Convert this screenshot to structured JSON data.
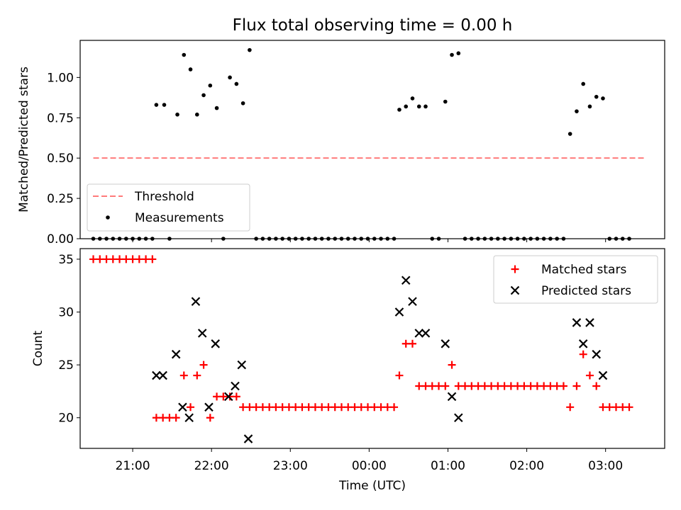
{
  "figure": {
    "title": "Flux total observing time = 0.00 h",
    "xlabel": "Time (UTC)"
  },
  "colors": {
    "threshold": "#ff7a7a",
    "measurements": "#000000",
    "matched": "#ff0000",
    "predicted": "#000000",
    "axes": "#000000"
  },
  "chart_data": [
    {
      "type": "scatter",
      "title": "Flux total observing time = 0.00 h",
      "ylabel": "Matched/Predicted stars",
      "xlabel": "",
      "x_unit": "time UTC",
      "xlim": [
        "20:20",
        "03:45"
      ],
      "ylim": [
        0.0,
        1.23
      ],
      "yticks": [
        0.0,
        0.25,
        0.5,
        0.75,
        1.0
      ],
      "ytick_labels": [
        "0.00",
        "0.25",
        "0.50",
        "0.75",
        "1.00"
      ],
      "legend": {
        "placement": "lower-left",
        "entries": [
          "Threshold",
          "Measurements"
        ]
      },
      "threshold": {
        "name": "Threshold",
        "value": 0.5,
        "x_range": [
          "20:30",
          "03:30"
        ],
        "style": "dashed"
      },
      "series": [
        {
          "name": "Measurements",
          "points": [
            [
              "20:30",
              0
            ],
            [
              "20:35",
              0
            ],
            [
              "20:40",
              0
            ],
            [
              "20:45",
              0
            ],
            [
              "20:50",
              0
            ],
            [
              "20:55",
              0
            ],
            [
              "21:00",
              0
            ],
            [
              "21:05",
              0
            ],
            [
              "21:10",
              0
            ],
            [
              "21:15",
              0
            ],
            [
              "21:18",
              0.83
            ],
            [
              "21:24",
              0.83
            ],
            [
              "21:28",
              0
            ],
            [
              "21:34",
              0.77
            ],
            [
              "21:39",
              1.14
            ],
            [
              "21:44",
              1.05
            ],
            [
              "21:49",
              0.77
            ],
            [
              "21:54",
              0.89
            ],
            [
              "21:59",
              0.95
            ],
            [
              "22:04",
              0.81
            ],
            [
              "22:09",
              0
            ],
            [
              "22:14",
              1.0
            ],
            [
              "22:19",
              0.96
            ],
            [
              "22:24",
              0.84
            ],
            [
              "22:29",
              1.17
            ],
            [
              "22:34",
              0
            ],
            [
              "22:39",
              0
            ],
            [
              "22:44",
              0
            ],
            [
              "22:49",
              0
            ],
            [
              "22:54",
              0
            ],
            [
              "22:59",
              0
            ],
            [
              "23:04",
              0
            ],
            [
              "23:09",
              0
            ],
            [
              "23:14",
              0
            ],
            [
              "23:19",
              0
            ],
            [
              "23:24",
              0
            ],
            [
              "23:29",
              0
            ],
            [
              "23:34",
              0
            ],
            [
              "23:39",
              0
            ],
            [
              "23:44",
              0
            ],
            [
              "23:49",
              0
            ],
            [
              "23:54",
              0
            ],
            [
              "23:59",
              0
            ],
            [
              "00:04",
              0
            ],
            [
              "00:09",
              0
            ],
            [
              "00:14",
              0
            ],
            [
              "00:19",
              0
            ],
            [
              "00:23",
              0.8
            ],
            [
              "00:28",
              0.82
            ],
            [
              "00:33",
              0.87
            ],
            [
              "00:38",
              0.82
            ],
            [
              "00:43",
              0.82
            ],
            [
              "00:48",
              0
            ],
            [
              "00:53",
              0
            ],
            [
              "00:58",
              0.85
            ],
            [
              "01:03",
              1.14
            ],
            [
              "01:08",
              1.15
            ],
            [
              "01:13",
              0
            ],
            [
              "01:18",
              0
            ],
            [
              "01:23",
              0
            ],
            [
              "01:28",
              0
            ],
            [
              "01:33",
              0
            ],
            [
              "01:38",
              0
            ],
            [
              "01:43",
              0
            ],
            [
              "01:48",
              0
            ],
            [
              "01:53",
              0
            ],
            [
              "01:58",
              0
            ],
            [
              "02:03",
              0
            ],
            [
              "02:08",
              0
            ],
            [
              "02:13",
              0
            ],
            [
              "02:18",
              0
            ],
            [
              "02:23",
              0
            ],
            [
              "02:28",
              0
            ],
            [
              "02:33",
              0.65
            ],
            [
              "02:38",
              0.79
            ],
            [
              "02:43",
              0.96
            ],
            [
              "02:48",
              0.82
            ],
            [
              "02:53",
              0.88
            ],
            [
              "02:58",
              0.87
            ],
            [
              "03:03",
              0
            ],
            [
              "03:08",
              0
            ],
            [
              "03:13",
              0
            ],
            [
              "03:18",
              0
            ]
          ]
        }
      ]
    },
    {
      "type": "scatter",
      "ylabel": "Count",
      "xlabel": "Time (UTC)",
      "xlim": [
        "20:20",
        "03:45"
      ],
      "ylim": [
        17.1,
        36.0
      ],
      "yticks": [
        20,
        25,
        30,
        35
      ],
      "ytick_labels": [
        "20",
        "25",
        "30",
        "35"
      ],
      "xticks": [
        "21:00",
        "22:00",
        "23:00",
        "00:00",
        "01:00",
        "02:00",
        "03:00"
      ],
      "xtick_labels": [
        "21:00",
        "22:00",
        "23:00",
        "00:00",
        "01:00",
        "02:00",
        "03:00"
      ],
      "legend": {
        "placement": "top-right",
        "entries": [
          "Matched stars",
          "Predicted stars"
        ]
      },
      "series": [
        {
          "name": "Matched stars",
          "marker": "+",
          "points": [
            [
              "20:30",
              35
            ],
            [
              "20:35",
              35
            ],
            [
              "20:40",
              35
            ],
            [
              "20:45",
              35
            ],
            [
              "20:50",
              35
            ],
            [
              "20:55",
              35
            ],
            [
              "21:00",
              35
            ],
            [
              "21:05",
              35
            ],
            [
              "21:10",
              35
            ],
            [
              "21:15",
              35
            ],
            [
              "21:18",
              20
            ],
            [
              "21:23",
              20
            ],
            [
              "21:28",
              20
            ],
            [
              "21:33",
              20
            ],
            [
              "21:39",
              24
            ],
            [
              "21:44",
              21
            ],
            [
              "21:49",
              24
            ],
            [
              "21:54",
              25
            ],
            [
              "21:59",
              20
            ],
            [
              "22:04",
              22
            ],
            [
              "22:09",
              22
            ],
            [
              "22:14",
              22
            ],
            [
              "22:19",
              22
            ],
            [
              "22:24",
              21
            ],
            [
              "22:29",
              21
            ],
            [
              "22:34",
              21
            ],
            [
              "22:39",
              21
            ],
            [
              "22:44",
              21
            ],
            [
              "22:49",
              21
            ],
            [
              "22:54",
              21
            ],
            [
              "22:59",
              21
            ],
            [
              "23:04",
              21
            ],
            [
              "23:09",
              21
            ],
            [
              "23:14",
              21
            ],
            [
              "23:19",
              21
            ],
            [
              "23:24",
              21
            ],
            [
              "23:29",
              21
            ],
            [
              "23:34",
              21
            ],
            [
              "23:39",
              21
            ],
            [
              "23:44",
              21
            ],
            [
              "23:49",
              21
            ],
            [
              "23:54",
              21
            ],
            [
              "23:59",
              21
            ],
            [
              "00:04",
              21
            ],
            [
              "00:09",
              21
            ],
            [
              "00:14",
              21
            ],
            [
              "00:19",
              21
            ],
            [
              "00:23",
              24
            ],
            [
              "00:28",
              27
            ],
            [
              "00:33",
              27
            ],
            [
              "00:38",
              23
            ],
            [
              "00:43",
              23
            ],
            [
              "00:48",
              23
            ],
            [
              "00:53",
              23
            ],
            [
              "00:58",
              23
            ],
            [
              "01:03",
              25
            ],
            [
              "01:08",
              23
            ],
            [
              "01:13",
              23
            ],
            [
              "01:18",
              23
            ],
            [
              "01:23",
              23
            ],
            [
              "01:28",
              23
            ],
            [
              "01:33",
              23
            ],
            [
              "01:38",
              23
            ],
            [
              "01:43",
              23
            ],
            [
              "01:48",
              23
            ],
            [
              "01:53",
              23
            ],
            [
              "01:58",
              23
            ],
            [
              "02:03",
              23
            ],
            [
              "02:08",
              23
            ],
            [
              "02:13",
              23
            ],
            [
              "02:18",
              23
            ],
            [
              "02:23",
              23
            ],
            [
              "02:28",
              23
            ],
            [
              "02:33",
              21
            ],
            [
              "02:38",
              23
            ],
            [
              "02:43",
              26
            ],
            [
              "02:48",
              24
            ],
            [
              "02:53",
              23
            ],
            [
              "02:58",
              21
            ],
            [
              "03:03",
              21
            ],
            [
              "03:08",
              21
            ],
            [
              "03:13",
              21
            ],
            [
              "03:18",
              21
            ]
          ]
        },
        {
          "name": "Predicted stars",
          "marker": "x",
          "points": [
            [
              "21:18",
              24
            ],
            [
              "21:23",
              24
            ],
            [
              "21:33",
              26
            ],
            [
              "21:38",
              21
            ],
            [
              "21:43",
              20
            ],
            [
              "21:48",
              31
            ],
            [
              "21:53",
              28
            ],
            [
              "21:58",
              21
            ],
            [
              "22:03",
              27
            ],
            [
              "22:13",
              22
            ],
            [
              "22:18",
              23
            ],
            [
              "22:23",
              25
            ],
            [
              "22:28",
              18
            ],
            [
              "00:23",
              30
            ],
            [
              "00:28",
              33
            ],
            [
              "00:33",
              31
            ],
            [
              "00:38",
              28
            ],
            [
              "00:43",
              28
            ],
            [
              "00:58",
              27
            ],
            [
              "01:03",
              22
            ],
            [
              "01:08",
              20
            ],
            [
              "02:38",
              29
            ],
            [
              "02:43",
              27
            ],
            [
              "02:48",
              29
            ],
            [
              "02:53",
              26
            ],
            [
              "02:58",
              24
            ]
          ]
        }
      ]
    }
  ]
}
